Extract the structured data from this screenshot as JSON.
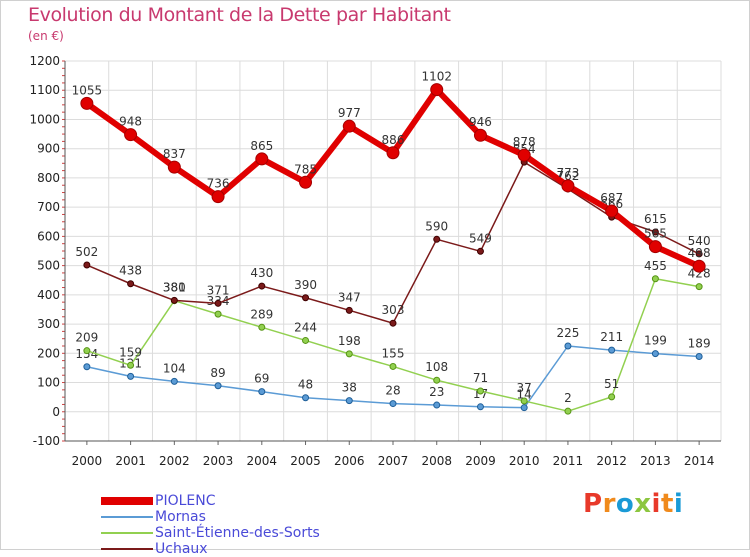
{
  "header": {
    "title": "Evolution du Montant de la Dette par Habitant",
    "subtitle": "(en €)"
  },
  "logo": {
    "text": [
      "P",
      "r",
      "o",
      "x",
      "i",
      "t",
      "i"
    ],
    "colors": [
      "#e8392a",
      "#f08a1c",
      "#1a9ad6",
      "#8cc63f",
      "#e8392a",
      "#f08a1c",
      "#1a9ad6"
    ]
  },
  "chart_data": {
    "type": "line",
    "title": "Evolution du Montant de la Dette par Habitant",
    "ylabel": "(en €)",
    "x": [
      "2000",
      "2001",
      "2002",
      "2003",
      "2004",
      "2005",
      "2006",
      "2007",
      "2008",
      "2009",
      "2010",
      "2011",
      "2012",
      "2013",
      "2014"
    ],
    "ylim": [
      -100,
      1200
    ],
    "yticks": [
      -100,
      0,
      100,
      200,
      300,
      400,
      500,
      600,
      700,
      800,
      900,
      1000,
      1100,
      1200
    ],
    "grid": true,
    "legend_position": "bottom-left",
    "series": [
      {
        "name": "PIOLENC",
        "color": "#e00000",
        "values": [
          1055,
          948,
          837,
          736,
          865,
          785,
          977,
          886,
          1102,
          946,
          878,
          773,
          687,
          565,
          498
        ]
      },
      {
        "name": "Mornas",
        "color": "#5b9bd5",
        "values": [
          154,
          121,
          104,
          89,
          69,
          48,
          38,
          28,
          23,
          17,
          14,
          225,
          211,
          199,
          189
        ]
      },
      {
        "name": "Saint-Étienne-des-Sorts",
        "color": "#92d050",
        "values": [
          209,
          159,
          380,
          334,
          289,
          244,
          198,
          155,
          108,
          71,
          37,
          2,
          51,
          455,
          428
        ]
      },
      {
        "name": "Uchaux",
        "color": "#7b1a1a",
        "values": [
          502,
          438,
          381,
          371,
          430,
          390,
          347,
          303,
          590,
          549,
          854,
          762,
          666,
          615,
          540
        ]
      }
    ]
  }
}
